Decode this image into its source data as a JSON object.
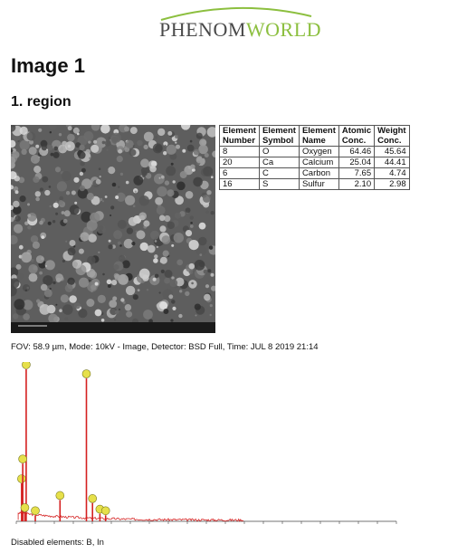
{
  "logo": {
    "part1": "PHENOM",
    "part2": "WORLD",
    "color_dark": "#4a4a4a",
    "color_green": "#8cbf3f"
  },
  "title": "Image 1",
  "section": "1. region",
  "table": {
    "headers": [
      [
        "Element",
        "Number"
      ],
      [
        "Element",
        "Symbol"
      ],
      [
        "Element",
        "Name"
      ],
      [
        "Atomic",
        "Conc."
      ],
      [
        "Weight",
        "Conc."
      ]
    ],
    "rows": [
      {
        "number": "8",
        "symbol": "O",
        "name": "Oxygen",
        "atomic": "64.46",
        "weight": "45.64"
      },
      {
        "number": "20",
        "symbol": "Ca",
        "name": "Calcium",
        "atomic": "25.04",
        "weight": "44.41"
      },
      {
        "number": "6",
        "symbol": "C",
        "name": "Carbon",
        "atomic": "7.65",
        "weight": "4.74"
      },
      {
        "number": "16",
        "symbol": "S",
        "name": "Sulfur",
        "atomic": "2.10",
        "weight": "2.98"
      }
    ]
  },
  "fov": "FOV: 58.9 µm, Mode: 10kV - Image, Detector: BSD Full, Time: JUL 8 2019 21:14",
  "disabled": "Disabled elements: B, In",
  "spectrum": {
    "line_color": "#d42020",
    "label_color": "#e6e04a",
    "xlim": [
      0,
      20
    ],
    "peaks": [
      {
        "x": 0.28,
        "y": 0.25
      },
      {
        "x": 0.52,
        "y": 1.0
      },
      {
        "x": 0.34,
        "y": 0.38
      },
      {
        "x": 0.45,
        "y": 0.06
      },
      {
        "x": 1.0,
        "y": 0.04
      },
      {
        "x": 2.3,
        "y": 0.14
      },
      {
        "x": 3.69,
        "y": 0.94
      },
      {
        "x": 4.01,
        "y": 0.12
      },
      {
        "x": 4.4,
        "y": 0.05
      },
      {
        "x": 4.7,
        "y": 0.04
      }
    ]
  }
}
